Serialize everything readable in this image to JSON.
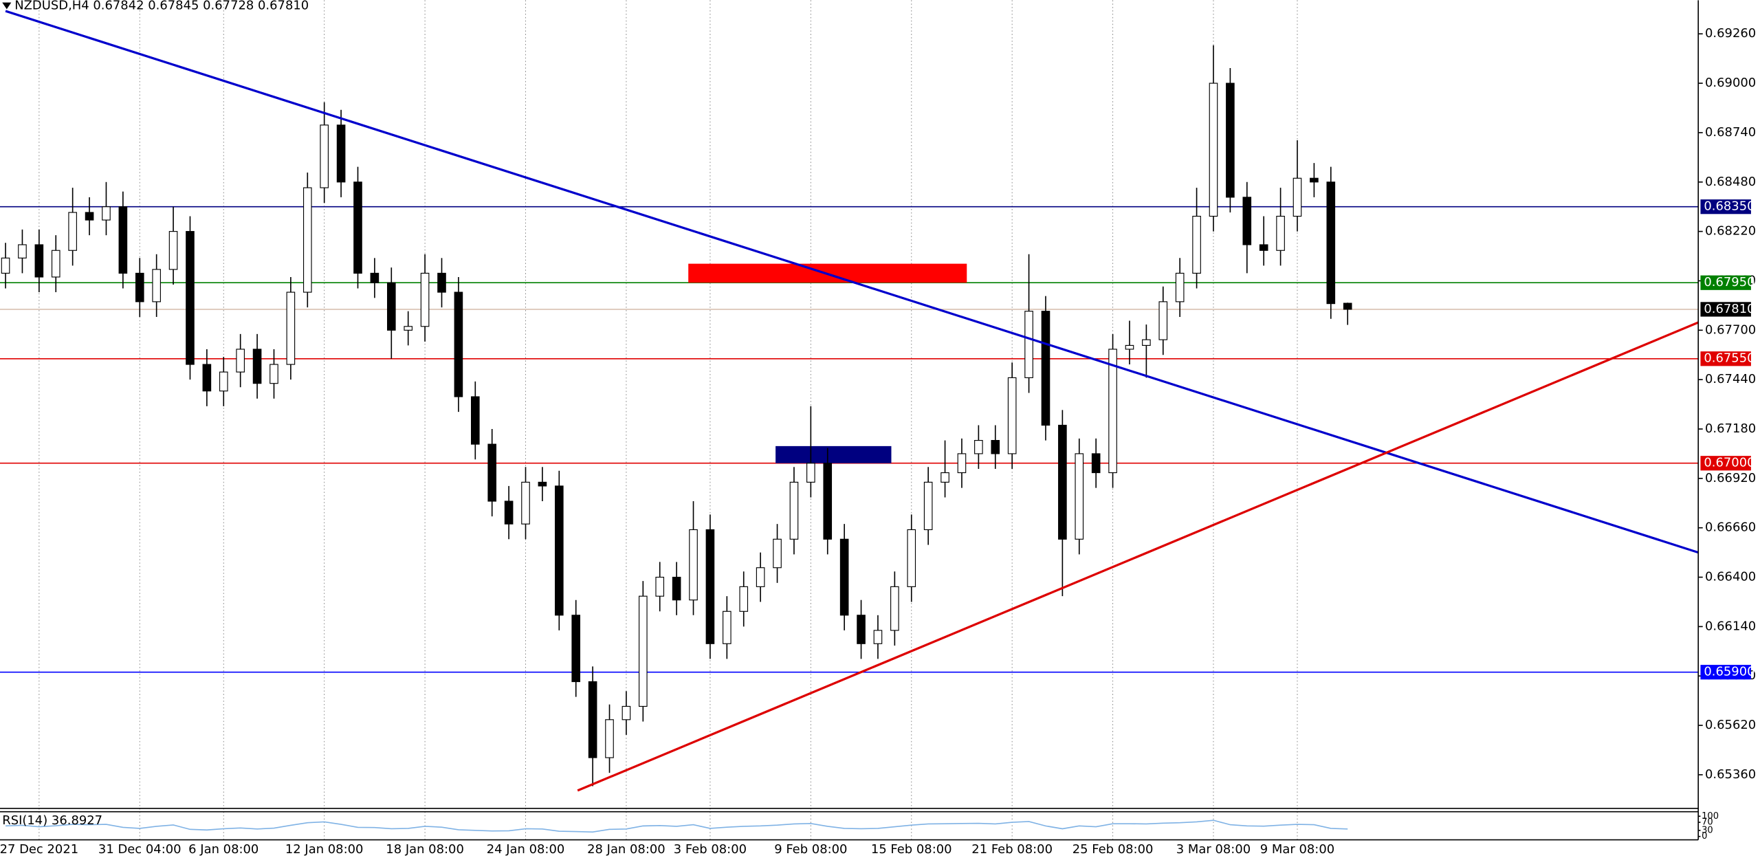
{
  "chart_data": {
    "type": "candlestick",
    "title": "NZDUSD,H4  0.67842 0.67845 0.67728 0.67810",
    "up_color": "#ffffff",
    "down_color": "#000000",
    "outline_color": "#000000",
    "grid": true,
    "xlim": [
      -0.33,
      100.9
    ],
    "ylim": [
      0.65183,
      0.69437
    ],
    "yticks": [
      {
        "value": 0.6926,
        "label": "0.69260"
      },
      {
        "value": 0.69,
        "label": "0.69000"
      },
      {
        "value": 0.6874,
        "label": "0.68740"
      },
      {
        "value": 0.6848,
        "label": "0.68480"
      },
      {
        "value": 0.6822,
        "label": "0.68220"
      },
      {
        "value": 0.6796,
        "label": "0.67960"
      },
      {
        "value": 0.677,
        "label": "0.67700"
      },
      {
        "value": 0.6744,
        "label": "0.67440"
      },
      {
        "value": 0.6718,
        "label": "0.67180"
      },
      {
        "value": 0.6692,
        "label": "0.66920"
      },
      {
        "value": 0.6666,
        "label": "0.66660"
      },
      {
        "value": 0.664,
        "label": "0.66400"
      },
      {
        "value": 0.6614,
        "label": "0.66140"
      },
      {
        "value": 0.6588,
        "label": "0.65880"
      },
      {
        "value": 0.6562,
        "label": "0.65620"
      },
      {
        "value": 0.6536,
        "label": "0.65360"
      }
    ],
    "categories": [
      null,
      null,
      "27 Dec 2021",
      null,
      null,
      null,
      null,
      null,
      "31 Dec 04:00",
      null,
      null,
      null,
      null,
      "6 Jan 08:00",
      null,
      null,
      null,
      null,
      null,
      "12 Jan 08:00",
      null,
      null,
      null,
      null,
      null,
      "18 Jan 08:00",
      null,
      null,
      null,
      null,
      null,
      "24 Jan 08:00",
      null,
      null,
      null,
      null,
      null,
      "28 Jan 08:00",
      null,
      null,
      null,
      null,
      "3 Feb 08:00",
      null,
      null,
      null,
      null,
      null,
      "9 Feb 08:00",
      null,
      null,
      null,
      null,
      null,
      "15 Feb 08:00",
      null,
      null,
      null,
      null,
      null,
      "21 Feb 08:00",
      null,
      null,
      null,
      null,
      null,
      "25 Feb 08:00",
      null,
      null,
      null,
      null,
      null,
      "3 Mar 08:00",
      null,
      null,
      null,
      null,
      "9 Mar 08:00",
      null,
      null,
      null
    ],
    "ohlc": [
      [
        0.68,
        0.6816,
        0.6792,
        0.6808
      ],
      [
        0.6808,
        0.6823,
        0.68,
        0.6815
      ],
      [
        0.6815,
        0.6823,
        0.679,
        0.6798
      ],
      [
        0.6798,
        0.682,
        0.679,
        0.6812
      ],
      [
        0.6812,
        0.6845,
        0.6804,
        0.6832
      ],
      [
        0.6832,
        0.684,
        0.682,
        0.6828
      ],
      [
        0.6828,
        0.6848,
        0.682,
        0.6835
      ],
      [
        0.6835,
        0.6843,
        0.6792,
        0.68
      ],
      [
        0.68,
        0.6808,
        0.6777,
        0.6785
      ],
      [
        0.6785,
        0.681,
        0.6777,
        0.6802
      ],
      [
        0.6802,
        0.6835,
        0.6794,
        0.6822
      ],
      [
        0.6822,
        0.683,
        0.6744,
        0.6752
      ],
      [
        0.6752,
        0.676,
        0.673,
        0.6738
      ],
      [
        0.6738,
        0.6756,
        0.673,
        0.6748
      ],
      [
        0.6748,
        0.6768,
        0.674,
        0.676
      ],
      [
        0.676,
        0.6768,
        0.6734,
        0.6742
      ],
      [
        0.6742,
        0.676,
        0.6734,
        0.6752
      ],
      [
        0.6752,
        0.6798,
        0.6744,
        0.679
      ],
      [
        0.679,
        0.6853,
        0.6782,
        0.6845
      ],
      [
        0.6845,
        0.689,
        0.6837,
        0.6878
      ],
      [
        0.6878,
        0.6886,
        0.684,
        0.6848
      ],
      [
        0.6848,
        0.6856,
        0.6792,
        0.68
      ],
      [
        0.68,
        0.6808,
        0.6787,
        0.6795
      ],
      [
        0.6795,
        0.6803,
        0.6755,
        0.677
      ],
      [
        0.677,
        0.678,
        0.6762,
        0.6772
      ],
      [
        0.6772,
        0.681,
        0.6764,
        0.68
      ],
      [
        0.68,
        0.6808,
        0.6782,
        0.679
      ],
      [
        0.679,
        0.6798,
        0.6727,
        0.6735
      ],
      [
        0.6735,
        0.6743,
        0.6702,
        0.671
      ],
      [
        0.671,
        0.6718,
        0.6672,
        0.668
      ],
      [
        0.668,
        0.6688,
        0.666,
        0.6668
      ],
      [
        0.6668,
        0.6698,
        0.666,
        0.669
      ],
      [
        0.669,
        0.6698,
        0.668,
        0.6688
      ],
      [
        0.6688,
        0.6696,
        0.6612,
        0.662
      ],
      [
        0.662,
        0.6628,
        0.6577,
        0.6585
      ],
      [
        0.6585,
        0.6593,
        0.653,
        0.6545
      ],
      [
        0.6545,
        0.6573,
        0.6537,
        0.6565
      ],
      [
        0.6565,
        0.658,
        0.6557,
        0.6572
      ],
      [
        0.6572,
        0.6638,
        0.6564,
        0.663
      ],
      [
        0.663,
        0.6648,
        0.6622,
        0.664
      ],
      [
        0.664,
        0.6648,
        0.662,
        0.6628
      ],
      [
        0.6628,
        0.668,
        0.662,
        0.6665
      ],
      [
        0.6665,
        0.6673,
        0.6597,
        0.6605
      ],
      [
        0.6605,
        0.663,
        0.6597,
        0.6622
      ],
      [
        0.6622,
        0.6643,
        0.6614,
        0.6635
      ],
      [
        0.6635,
        0.6653,
        0.6627,
        0.6645
      ],
      [
        0.6645,
        0.6668,
        0.6637,
        0.666
      ],
      [
        0.666,
        0.6698,
        0.6652,
        0.669
      ],
      [
        0.669,
        0.673,
        0.6682,
        0.67
      ],
      [
        0.67,
        0.6708,
        0.6652,
        0.666
      ],
      [
        0.666,
        0.6668,
        0.6612,
        0.662
      ],
      [
        0.662,
        0.6628,
        0.6597,
        0.6605
      ],
      [
        0.6605,
        0.662,
        0.6597,
        0.6612
      ],
      [
        0.6612,
        0.6643,
        0.6604,
        0.6635
      ],
      [
        0.6635,
        0.6673,
        0.6627,
        0.6665
      ],
      [
        0.6665,
        0.6698,
        0.6657,
        0.669
      ],
      [
        0.669,
        0.6712,
        0.6682,
        0.6695
      ],
      [
        0.6695,
        0.6713,
        0.6687,
        0.6705
      ],
      [
        0.6705,
        0.672,
        0.6697,
        0.6712
      ],
      [
        0.6712,
        0.672,
        0.6697,
        0.6705
      ],
      [
        0.6705,
        0.6753,
        0.6697,
        0.6745
      ],
      [
        0.6745,
        0.681,
        0.6737,
        0.678
      ],
      [
        0.678,
        0.6788,
        0.6712,
        0.672
      ],
      [
        0.672,
        0.6728,
        0.663,
        0.666
      ],
      [
        0.666,
        0.6713,
        0.6652,
        0.6705
      ],
      [
        0.6705,
        0.6713,
        0.6687,
        0.6695
      ],
      [
        0.6695,
        0.6768,
        0.6687,
        0.676
      ],
      [
        0.676,
        0.6775,
        0.6752,
        0.6762
      ],
      [
        0.6762,
        0.6773,
        0.6745,
        0.6765
      ],
      [
        0.6765,
        0.6793,
        0.6757,
        0.6785
      ],
      [
        0.6785,
        0.6808,
        0.6777,
        0.68
      ],
      [
        0.68,
        0.6845,
        0.6792,
        0.683
      ],
      [
        0.683,
        0.692,
        0.6822,
        0.69
      ],
      [
        0.69,
        0.6908,
        0.6832,
        0.684
      ],
      [
        0.684,
        0.6848,
        0.68,
        0.6815
      ],
      [
        0.6815,
        0.683,
        0.6804,
        0.6812
      ],
      [
        0.6812,
        0.6845,
        0.6804,
        0.683
      ],
      [
        0.683,
        0.687,
        0.6822,
        0.685
      ],
      [
        0.685,
        0.6858,
        0.684,
        0.6848
      ],
      [
        0.6848,
        0.6856,
        0.6776,
        0.6784
      ],
      [
        0.67842,
        0.67845,
        0.67728,
        0.6781
      ]
    ],
    "levels": [
      {
        "value": 0.6835,
        "label": "0.68350",
        "color": "#000080"
      },
      {
        "value": 0.6795,
        "label": "0.67950",
        "color": "#008000"
      },
      {
        "value": 0.6781,
        "label": "0.67810",
        "color": "#000000"
      },
      {
        "value": 0.6755,
        "label": "0.67550",
        "color": "#e00000"
      },
      {
        "value": 0.67,
        "label": "0.67000",
        "color": "#e00000"
      },
      {
        "value": 0.659,
        "label": "0.65900",
        "color": "#0000ff"
      }
    ],
    "trendlines": [
      {
        "color": "#0000cc",
        "start": [
          0,
          0.6938
        ],
        "end": [
          100.9,
          0.6653
        ]
      },
      {
        "color": "#dd0000",
        "start": [
          34.1,
          0.65277
        ],
        "end": [
          100.9,
          0.67741
        ]
      }
    ],
    "zones": [
      {
        "color": "#ff0000",
        "x": [
          40.7,
          57.3
        ],
        "y": [
          0.6795,
          0.6805
        ]
      },
      {
        "color": "#000080",
        "x": [
          45.9,
          52.8
        ],
        "y": [
          0.67,
          0.6709
        ]
      }
    ],
    "rsi": {
      "label": "RSI(14) 36.8927",
      "ylim": [
        0,
        100
      ],
      "ticks": [
        100,
        70,
        30,
        0
      ],
      "color": "#7fb2e5",
      "values": [
        52,
        55,
        48,
        53,
        60,
        58,
        60,
        45,
        40,
        50,
        57,
        35,
        32,
        38,
        42,
        37,
        41,
        55,
        68,
        72,
        60,
        45,
        44,
        38,
        40,
        50,
        46,
        33,
        30,
        27,
        28,
        38,
        37,
        26,
        24,
        22,
        35,
        37,
        52,
        54,
        50,
        58,
        40,
        46,
        50,
        52,
        56,
        62,
        64,
        50,
        40,
        38,
        40,
        48,
        56,
        62,
        63,
        64,
        65,
        62,
        70,
        74,
        52,
        38,
        52,
        48,
        63,
        63,
        62,
        66,
        68,
        72,
        80,
        58,
        52,
        51,
        56,
        60,
        58,
        40,
        36.8927
      ]
    }
  }
}
